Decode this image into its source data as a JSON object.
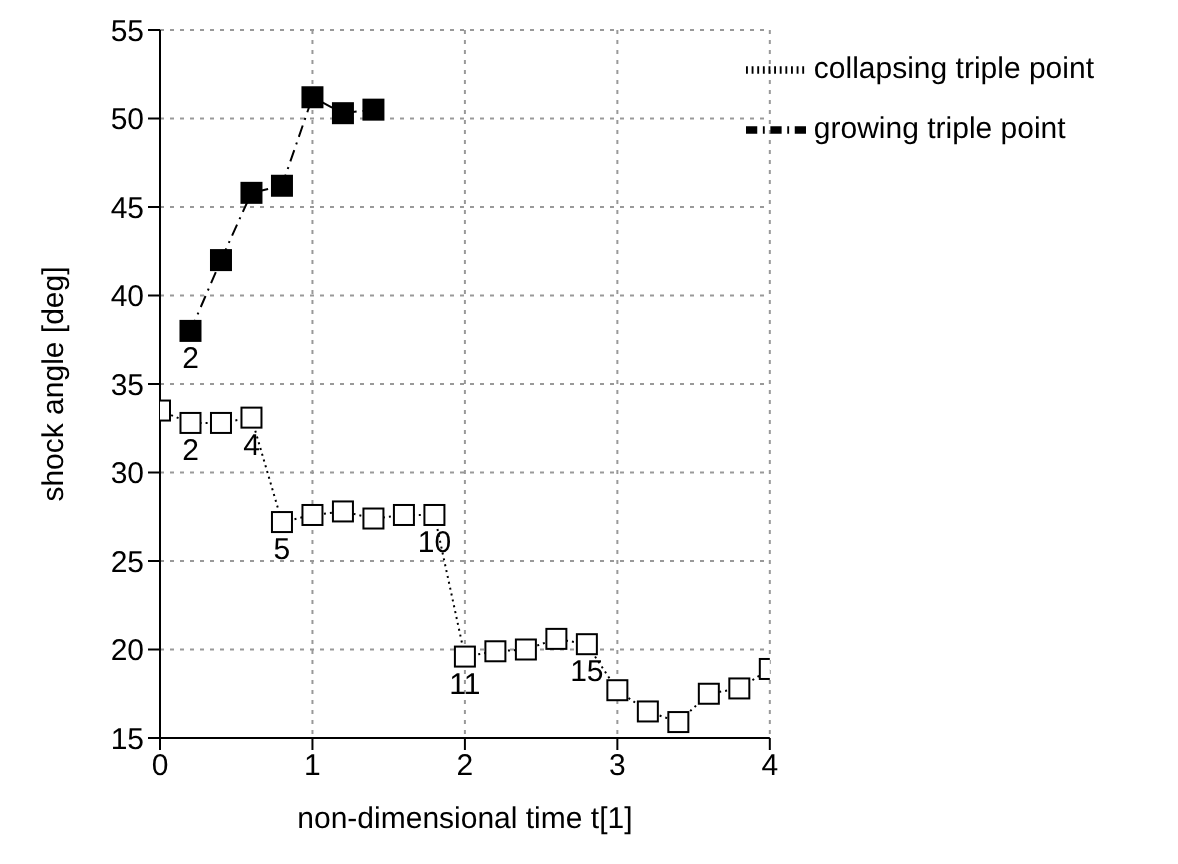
{
  "chart_data": {
    "type": "line",
    "xlabel": "non-dimensional time t[1]",
    "ylabel": "shock angle [deg]",
    "xlim": [
      0,
      4
    ],
    "xticks": [
      0,
      1,
      2,
      3,
      4
    ],
    "ylim": [
      15,
      55
    ],
    "yticks": [
      15,
      20,
      25,
      30,
      35,
      40,
      45,
      50,
      55
    ],
    "grid": true,
    "legend": "top right",
    "marker": "square",
    "series": [
      {
        "name": "collapsing triple point",
        "color": "#000000",
        "line_style": "dotted",
        "x": [
          0,
          0.2,
          0.4,
          0.6,
          0.8,
          1.0,
          1.2,
          1.4,
          1.6,
          1.8,
          2.0,
          2.2,
          2.4,
          2.6,
          2.8,
          3.0,
          3.2,
          3.4,
          3.6,
          3.8,
          4.0
        ],
        "values": [
          33.5,
          32.8,
          32.8,
          33.1,
          27.2,
          27.6,
          27.8,
          27.4,
          27.6,
          27.6,
          19.6,
          19.9,
          20.0,
          20.6,
          20.3,
          17.7,
          16.5,
          15.9,
          17.5,
          17.8,
          18.9
        ]
      },
      {
        "name": "growing triple point",
        "color": "#000000",
        "line_style": "dashed",
        "x": [
          0.2,
          0.4,
          0.6,
          0.8,
          1.0,
          1.2,
          1.4
        ],
        "values": [
          38.0,
          42.0,
          45.8,
          46.2,
          51.2,
          50.3,
          50.5
        ]
      }
    ],
    "annotations": [
      {
        "text": "2",
        "x": 0.2,
        "y": 38.0
      },
      {
        "text": "2",
        "x": 0.2,
        "y": 32.8
      },
      {
        "text": "4",
        "x": 0.6,
        "y": 33.1
      },
      {
        "text": "5",
        "x": 0.8,
        "y": 27.2
      },
      {
        "text": "10",
        "x": 1.8,
        "y": 27.6
      },
      {
        "text": "11",
        "x": 2.0,
        "y": 19.6
      },
      {
        "text": "15",
        "x": 2.8,
        "y": 20.3
      }
    ]
  }
}
